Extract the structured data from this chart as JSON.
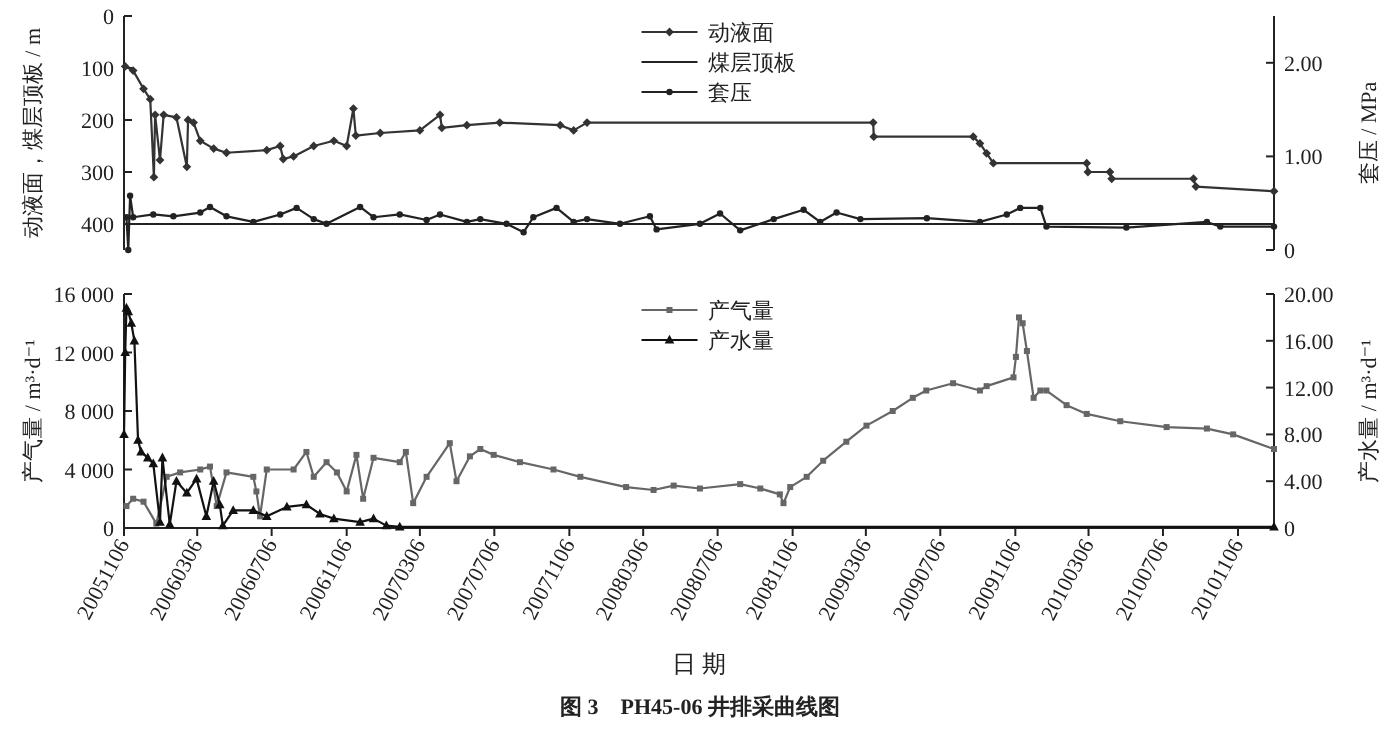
{
  "chart_data": [
    {
      "type": "line",
      "ylabel": "动液面，煤层顶板 / m",
      "y2label": "套压 / MPa",
      "tick_labels": "y",
      "legend": "top",
      "xlim": [
        "2005-11-06",
        "2011-01-04"
      ],
      "ylim": [
        450,
        0
      ],
      "yticks": [
        0,
        100,
        200,
        300,
        400
      ],
      "y2lim": [
        0,
        2.5
      ],
      "y2ticks": [
        0,
        {
          "value": 1,
          "label": "1.00"
        },
        {
          "value": 2,
          "label": "2.00"
        }
      ],
      "series": [
        {
          "name": "动液面",
          "color": "#333333",
          "marker": "diamond",
          "x": [
            "2005-11-08",
            "2005-11-21",
            "2005-12-08",
            "2005-12-19",
            "2005-12-25",
            "2005-12-27",
            "2006-01-04",
            "2006-01-10",
            "2006-01-31",
            "2006-02-17",
            "2006-02-19",
            "2006-02-28",
            "2006-03-11",
            "2006-04-02",
            "2006-04-23",
            "2006-06-28",
            "2006-07-20",
            "2006-07-25",
            "2006-08-11",
            "2006-09-13",
            "2006-10-16",
            "2006-11-06",
            "2006-11-17",
            "2006-11-21",
            "2006-12-31",
            "2007-03-06",
            "2007-04-08",
            "2007-04-11",
            "2007-05-22",
            "2007-07-15",
            "2007-10-22",
            "2007-11-13",
            "2007-12-05",
            "2009-03-18",
            "2009-03-19",
            "2009-08-29",
            "2009-09-09",
            "2009-09-20",
            "2009-10-01",
            "2010-03-03",
            "2010-03-05",
            "2010-04-10",
            "2010-04-13",
            "2010-08-25",
            "2010-08-29",
            "2011-01-04"
          ],
          "values": [
            97,
            105,
            140,
            160,
            310,
            190,
            277,
            190,
            195,
            290,
            200,
            205,
            240,
            255,
            263,
            258,
            250,
            275,
            270,
            250,
            240,
            250,
            178,
            230,
            225,
            220,
            190,
            215,
            210,
            205,
            210,
            220,
            205,
            205,
            232,
            232,
            245,
            264,
            283,
            283,
            300,
            300,
            313,
            313,
            328,
            337
          ]
        },
        {
          "name": "煤层顶板",
          "color": "#222222",
          "marker": "none",
          "x": [
            "2005-11-06",
            "2011-01-04"
          ],
          "values": [
            400,
            400
          ]
        },
        {
          "name": "套压",
          "color": "#222222",
          "marker": "circle",
          "axis": "y2",
          "x": [
            "2005-11-10",
            "2005-11-13",
            "2005-11-16",
            "2005-11-21",
            "2005-12-24",
            "2006-01-26",
            "2006-03-11",
            "2006-03-27",
            "2006-04-23",
            "2006-06-06",
            "2006-07-20",
            "2006-08-16",
            "2006-09-13",
            "2006-10-04",
            "2006-11-28",
            "2006-12-20",
            "2007-02-01",
            "2007-03-17",
            "2007-04-08",
            "2007-05-22",
            "2007-06-13",
            "2007-07-26",
            "2007-08-23",
            "2007-09-08",
            "2007-10-16",
            "2007-11-13",
            "2007-12-05",
            "2008-01-28",
            "2008-03-17",
            "2008-03-28",
            "2008-06-07",
            "2008-07-10",
            "2008-08-12",
            "2008-10-06",
            "2008-11-24",
            "2008-12-21",
            "2009-01-17",
            "2009-02-25",
            "2009-06-14",
            "2009-09-09",
            "2009-10-23",
            "2009-11-14",
            "2009-12-17",
            "2009-12-27",
            "2010-05-07",
            "2010-09-16",
            "2010-10-08",
            "2011-01-04"
          ],
          "values": [
            0.35,
            0,
            0.58,
            0.35,
            0.38,
            0.36,
            0.4,
            0.46,
            0.36,
            0.3,
            0.38,
            0.45,
            0.33,
            0.28,
            0.46,
            0.35,
            0.38,
            0.32,
            0.38,
            0.3,
            0.33,
            0.28,
            0.19,
            0.35,
            0.45,
            0.3,
            0.33,
            0.28,
            0.36,
            0.22,
            0.28,
            0.39,
            0.21,
            0.33,
            0.43,
            0.3,
            0.4,
            0.33,
            0.34,
            0.3,
            0.38,
            0.45,
            0.45,
            0.25,
            0.24,
            0.3,
            0.25,
            0.25
          ]
        }
      ]
    },
    {
      "type": "line",
      "ylabel": "产气量 / m³·d⁻¹",
      "y2label": "产水量 / m³·d⁻¹",
      "xlabel": "日 期",
      "legend": "top",
      "annotations": [
        "图 3　PH45-06 井排采曲线图"
      ],
      "xlim": [
        "2005-11-06",
        "2011-01-04"
      ],
      "xticks": [
        {
          "value": "2005-11-06",
          "label": "20051106"
        },
        {
          "value": "2006-03-06",
          "label": "20060306"
        },
        {
          "value": "2006-07-06",
          "label": "20060706"
        },
        {
          "value": "2006-11-06",
          "label": "20061106"
        },
        {
          "value": "2007-03-06",
          "label": "20070306"
        },
        {
          "value": "2007-07-06",
          "label": "20070706"
        },
        {
          "value": "2007-11-06",
          "label": "20071106"
        },
        {
          "value": "2008-03-06",
          "label": "20080306"
        },
        {
          "value": "2008-07-06",
          "label": "20080706"
        },
        {
          "value": "2008-11-06",
          "label": "20081106"
        },
        {
          "value": "2009-03-06",
          "label": "20090306"
        },
        {
          "value": "2009-07-06",
          "label": "20090706"
        },
        {
          "value": "2009-11-06",
          "label": "20091106"
        },
        {
          "value": "2010-03-06",
          "label": "20100306"
        },
        {
          "value": "2010-07-06",
          "label": "20100706"
        },
        {
          "value": "2010-11-06",
          "label": "20101106"
        }
      ],
      "ylim": [
        0,
        16000
      ],
      "yticks": [
        0,
        {
          "value": 4000,
          "label": "4 000"
        },
        {
          "value": 8000,
          "label": "8 000"
        },
        {
          "value": 12000,
          "label": "12 000"
        },
        {
          "value": 16000,
          "label": "16 000"
        }
      ],
      "y2lim": [
        0,
        20
      ],
      "y2ticks": [
        0,
        {
          "value": 4,
          "label": "4.00"
        },
        {
          "value": 8,
          "label": "8.00"
        },
        {
          "value": 12,
          "label": "12.00"
        },
        {
          "value": 16,
          "label": "16.00"
        },
        {
          "value": 20,
          "label": "20.00"
        }
      ],
      "series": [
        {
          "name": "产气量",
          "color": "#666666",
          "marker": "square",
          "x": [
            "2005-11-10",
            "2005-11-21",
            "2005-12-08",
            "2005-12-29",
            "2006-01-15",
            "2006-02-06",
            "2006-03-11",
            "2006-03-27",
            "2006-04-07",
            "2006-04-23",
            "2006-06-06",
            "2006-06-11",
            "2006-06-17",
            "2006-06-28",
            "2006-08-11",
            "2006-09-01",
            "2006-09-13",
            "2006-10-04",
            "2006-10-21",
            "2006-11-06",
            "2006-11-22",
            "2006-12-03",
            "2006-12-20",
            "2007-02-01",
            "2007-02-11",
            "2007-02-23",
            "2007-03-17",
            "2007-04-24",
            "2007-05-05",
            "2007-05-27",
            "2007-06-13",
            "2007-07-05",
            "2007-08-17",
            "2007-10-11",
            "2007-11-24",
            "2008-02-07",
            "2008-03-23",
            "2008-04-25",
            "2008-06-07",
            "2008-08-12",
            "2008-09-14",
            "2008-10-16",
            "2008-10-22",
            "2008-11-02",
            "2008-11-29",
            "2008-12-26",
            "2009-02-02",
            "2009-03-07",
            "2009-04-19",
            "2009-05-22",
            "2009-06-13",
            "2009-07-27",
            "2009-09-09",
            "2009-09-20",
            "2009-11-03",
            "2009-11-07",
            "2009-11-12",
            "2009-11-18",
            "2009-11-25",
            "2009-12-06",
            "2009-12-17",
            "2009-12-27",
            "2010-01-29",
            "2010-03-03",
            "2010-04-27",
            "2010-07-12",
            "2010-09-16",
            "2010-10-29",
            "2011-01-04"
          ],
          "values": [
            1500,
            2000,
            1800,
            300,
            3500,
            3800,
            4000,
            4200,
            1500,
            3800,
            3500,
            2500,
            800,
            4000,
            4000,
            5200,
            3500,
            4500,
            3800,
            2500,
            5000,
            2000,
            4800,
            4500,
            5200,
            1700,
            3500,
            5800,
            3200,
            4900,
            5400,
            5000,
            4500,
            4000,
            3500,
            2800,
            2600,
            2900,
            2700,
            3000,
            2700,
            2300,
            1700,
            2800,
            3500,
            4600,
            5900,
            7000,
            8000,
            8900,
            9400,
            9900,
            9400,
            9700,
            10300,
            11700,
            14400,
            14000,
            12100,
            8900,
            9400,
            9400,
            8400,
            7800,
            7300,
            6900,
            6800,
            6400,
            5400
          ]
        },
        {
          "name": "产水量",
          "color": "#111111",
          "marker": "triangle",
          "axis": "y2",
          "x": [
            "2005-11-06",
            "2005-11-08",
            "2005-11-10",
            "2005-11-13",
            "2005-11-18",
            "2005-11-23",
            "2005-11-29",
            "2005-12-04",
            "2005-12-15",
            "2005-12-24",
            "2006-01-04",
            "2006-01-08",
            "2006-01-20",
            "2006-01-31",
            "2006-02-17",
            "2006-03-05",
            "2006-03-21",
            "2006-04-02",
            "2006-04-12",
            "2006-04-17",
            "2006-05-04",
            "2006-06-06",
            "2006-06-28",
            "2006-07-31",
            "2006-09-01",
            "2006-09-23",
            "2006-10-16",
            "2006-11-28",
            "2006-12-20",
            "2007-01-10",
            "2007-02-01",
            "2011-01-04"
          ],
          "values": [
            8.0,
            15.0,
            18.8,
            18.5,
            17.5,
            16.0,
            7.5,
            6.5,
            6.0,
            5.5,
            0.5,
            6.0,
            0.3,
            4.0,
            3.0,
            4.2,
            1.0,
            4.0,
            2.0,
            0.2,
            1.5,
            1.5,
            1.0,
            1.8,
            2.0,
            1.2,
            0.8,
            0.5,
            0.8,
            0.2,
            0.1,
            0.1
          ]
        }
      ]
    }
  ]
}
